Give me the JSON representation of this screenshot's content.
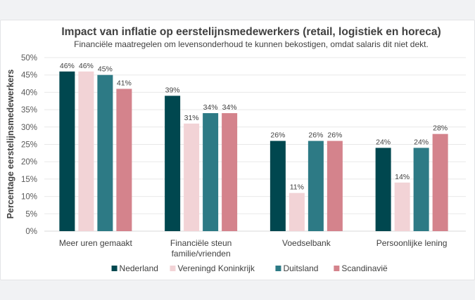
{
  "chart_data": {
    "type": "bar",
    "title": "Impact van inflatie op eerstelijnsmedewerkers (retail, logistiek en horeca)",
    "subtitle": "Financiële maatregelen om levensonderhoud te kunnen bekostigen, omdat salaris dit niet dekt.",
    "xlabel": "",
    "ylabel": "Percentage eerstelijnsmedewerkers",
    "ylim": [
      0,
      50
    ],
    "ytick_step": 5,
    "yticks": [
      "0%",
      "5%",
      "10%",
      "15%",
      "20%",
      "25%",
      "30%",
      "35%",
      "40%",
      "45%",
      "50%"
    ],
    "grid": true,
    "legend_position": "bottom",
    "categories": [
      [
        "Meer uren gemaakt"
      ],
      [
        "Financiële steun",
        "familie/vrienden"
      ],
      [
        "Voedselbank"
      ],
      [
        "Persoonlijke lening"
      ]
    ],
    "series": [
      {
        "name": "Nederland",
        "color": "#00474f",
        "values": [
          46,
          39,
          26,
          24
        ]
      },
      {
        "name": "Vereningd Koninkrijk",
        "color": "#f2d3d6",
        "values": [
          46,
          31,
          11,
          14
        ]
      },
      {
        "name": "Duitsland",
        "color": "#2d7a85",
        "values": [
          45,
          34,
          26,
          24
        ]
      },
      {
        "name": "Scandinavië",
        "color": "#d4838c",
        "values": [
          41,
          34,
          26,
          28
        ]
      }
    ],
    "value_suffix": "%"
  }
}
